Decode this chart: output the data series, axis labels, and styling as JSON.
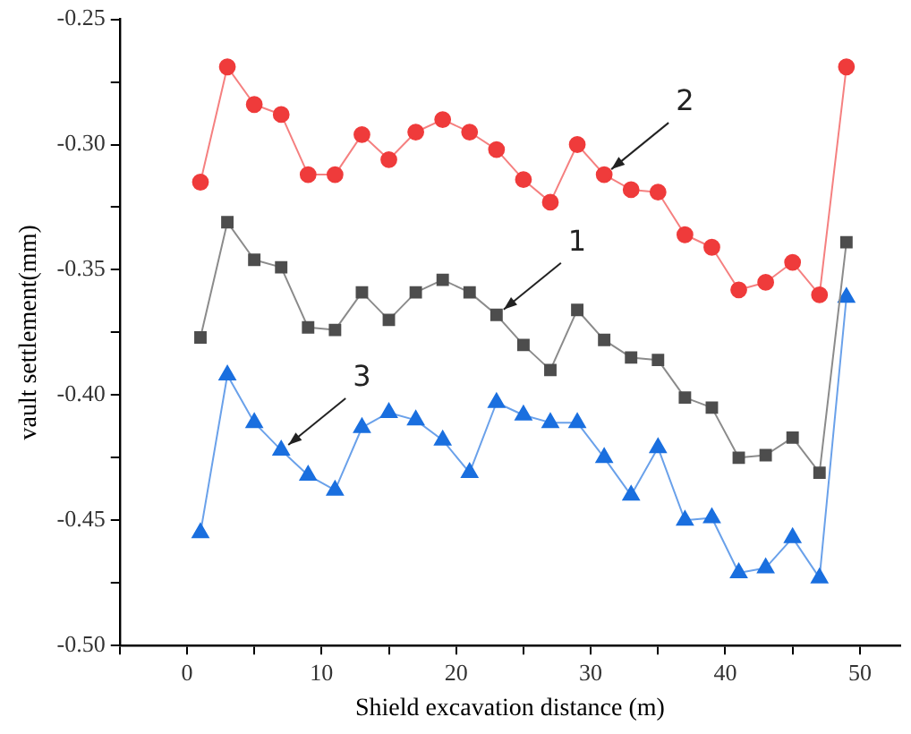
{
  "chart_data": {
    "type": "line",
    "xlabel": "Shield excavation distance (m)",
    "ylabel": "vault settlement(mm)",
    "x": [
      1,
      3,
      5,
      7,
      9,
      11,
      13,
      15,
      17,
      19,
      21,
      23,
      25,
      27,
      29,
      31,
      33,
      35,
      37,
      39,
      41,
      43,
      45,
      47,
      49
    ],
    "series": [
      {
        "color": "#4d4d4d",
        "marker": "square",
        "values": [
          -0.377,
          -0.331,
          -0.346,
          -0.349,
          -0.373,
          -0.374,
          -0.359,
          -0.37,
          -0.359,
          -0.354,
          -0.359,
          -0.368,
          -0.38,
          -0.39,
          -0.366,
          -0.378,
          -0.385,
          -0.386,
          -0.401,
          -0.405,
          -0.425,
          -0.424,
          -0.417,
          -0.431,
          -0.339
        ]
      },
      {
        "color": "#ef3b3b",
        "marker": "circle",
        "values": [
          -0.315,
          -0.269,
          -0.284,
          -0.288,
          -0.312,
          -0.312,
          -0.296,
          -0.306,
          -0.295,
          -0.29,
          -0.295,
          -0.302,
          -0.314,
          -0.323,
          -0.3,
          -0.312,
          -0.318,
          -0.319,
          -0.336,
          -0.341,
          -0.358,
          -0.355,
          -0.347,
          -0.36,
          -0.269
        ]
      },
      {
        "color": "#1a6fdf",
        "marker": "triangle",
        "values": [
          -0.455,
          -0.392,
          -0.411,
          -0.422,
          -0.432,
          -0.438,
          -0.413,
          -0.407,
          -0.41,
          -0.418,
          -0.431,
          -0.403,
          -0.408,
          -0.411,
          -0.411,
          -0.425,
          -0.44,
          -0.421,
          -0.45,
          -0.449,
          -0.471,
          -0.469,
          -0.457,
          -0.473,
          -0.361
        ]
      }
    ],
    "annotations": [
      {
        "text": "1",
        "x": 23,
        "y": -0.368
      },
      {
        "text": "2",
        "x": 31,
        "y": -0.312
      },
      {
        "text": "3",
        "x": 7,
        "y": -0.422
      }
    ],
    "xlim": [
      -5,
      53
    ],
    "xticks": [
      {
        "value": -5,
        "label": null
      },
      0,
      {
        "value": 5,
        "label": null
      },
      10,
      {
        "value": 15,
        "label": null
      },
      20,
      {
        "value": 25,
        "label": null
      },
      30,
      {
        "value": 35,
        "label": null
      },
      40,
      {
        "value": 45,
        "label": null
      },
      50
    ],
    "ylim": [
      -0.5,
      -0.25
    ],
    "yticks": [
      {
        "value": -0.5,
        "label": "-0.50"
      },
      {
        "value": -0.475,
        "label": null
      },
      {
        "value": -0.45,
        "label": "-0.45"
      },
      {
        "value": -0.425,
        "label": null
      },
      {
        "value": -0.4,
        "label": "-0.40"
      },
      {
        "value": -0.375,
        "label": null
      },
      {
        "value": -0.35,
        "label": "-0.35"
      },
      {
        "value": -0.325,
        "label": null
      },
      {
        "value": -0.3,
        "label": "-0.30"
      },
      {
        "value": -0.275,
        "label": null
      },
      {
        "value": -0.25,
        "label": "-0.25"
      }
    ],
    "grid": false,
    "legend": false,
    "line_style": "solid"
  }
}
